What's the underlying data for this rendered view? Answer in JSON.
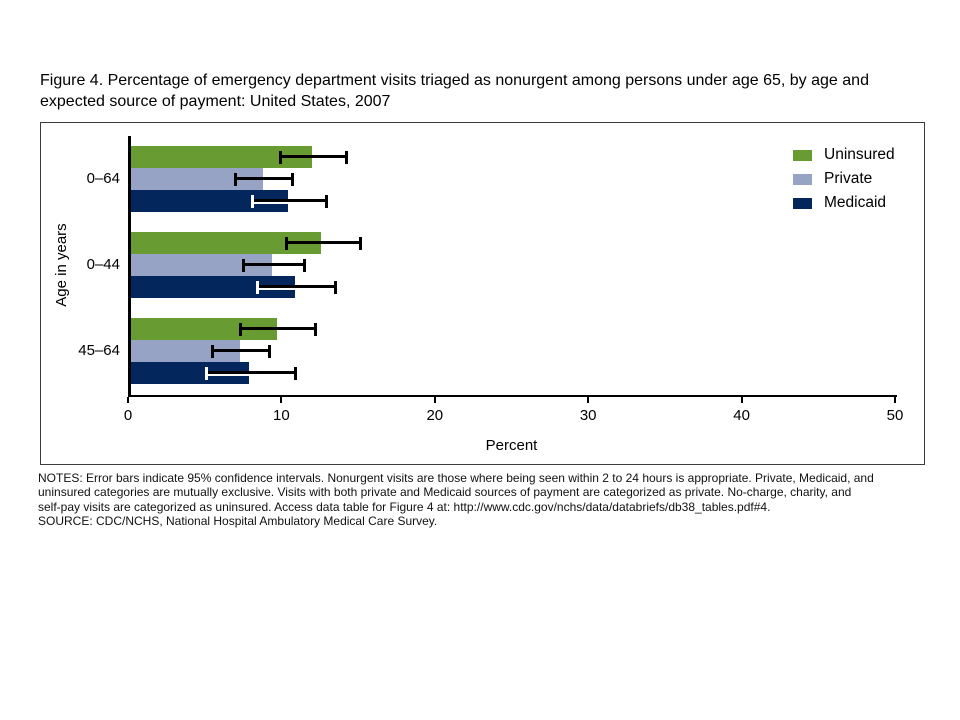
{
  "figure": {
    "title_lines": [
      "Figure 4. Percentage of emergency department visits triaged as nonurgent among persons under age 65, by age and",
      "expected source of payment: United States, 2007"
    ],
    "notes_lines": [
      "NOTES: Error bars indicate 95% confidence intervals. Nonurgent visits are those where being seen within 2 to 24 hours is appropriate. Private, Medicaid, and",
      "uninsured categories are mutually exclusive. Visits with both private and Medicaid sources of payment are categorized as private. No-charge, charity, and",
      "self-pay visits are categorized as uninsured. Access data table for Figure 4 at: http://www.cdc.gov/nchs/data/databriefs/db38_tables.pdf#4."
    ],
    "source_line": "SOURCE: CDC/NCHS, National Hospital Ambulatory Medical Care Survey."
  },
  "chart_data": {
    "type": "bar",
    "orientation": "horizontal",
    "xlabel": "Percent",
    "ylabel": "Age in years",
    "xlim": [
      0,
      50
    ],
    "xticks": [
      0,
      10,
      20,
      30,
      40,
      50
    ],
    "grid": false,
    "legend_position": "top-right",
    "error_bars": "95% confidence intervals",
    "categories": [
      "0–64",
      "0–44",
      "45–64"
    ],
    "series": [
      {
        "name": "Uninsured",
        "color": "#699B33",
        "values": [
          12.0,
          12.6,
          9.7
        ],
        "ci_low": [
          9.9,
          10.3,
          7.3
        ],
        "ci_high": [
          14.2,
          15.1,
          12.2
        ]
      },
      {
        "name": "Private",
        "color": "#96A3C4",
        "values": [
          8.8,
          9.4,
          7.3
        ],
        "ci_low": [
          7.0,
          7.5,
          5.5
        ],
        "ci_high": [
          10.7,
          11.5,
          9.2
        ]
      },
      {
        "name": "Medicaid",
        "color": "#03275C",
        "values": [
          10.4,
          10.9,
          7.9
        ],
        "ci_low": [
          8.1,
          8.4,
          5.1
        ],
        "ci_high": [
          12.9,
          13.5,
          10.9
        ]
      }
    ]
  }
}
